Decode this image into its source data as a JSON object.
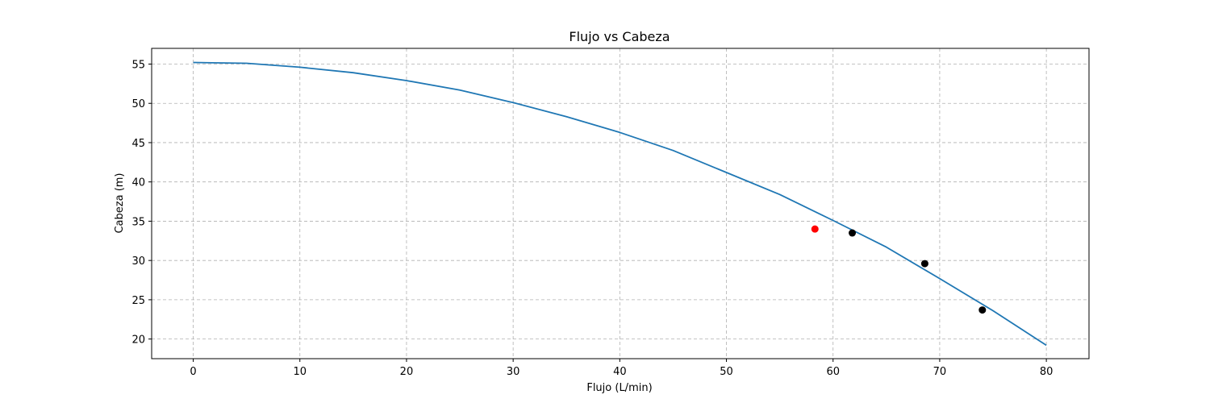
{
  "chart_data": {
    "type": "line",
    "title": "Flujo vs Cabeza",
    "xlabel": "Flujo (L/min)",
    "ylabel": "Cabeza (m)",
    "xlim": [
      -3.9,
      84
    ],
    "ylim": [
      17.5,
      57.0
    ],
    "x_ticks": [
      0,
      10,
      20,
      30,
      40,
      50,
      60,
      70,
      80
    ],
    "y_ticks": [
      20,
      25,
      30,
      35,
      40,
      45,
      50,
      55
    ],
    "grid": true,
    "legend": "none",
    "series": [
      {
        "kind": "line",
        "color": "#1f77b4",
        "x": [
          0,
          5,
          10,
          15,
          20,
          25,
          30,
          35,
          40,
          45,
          50,
          55,
          60,
          65,
          70,
          75,
          80
        ],
        "y": [
          55.2,
          55.1,
          54.6,
          53.9,
          52.9,
          51.7,
          50.1,
          48.3,
          46.3,
          44.0,
          41.2,
          38.4,
          35.1,
          31.7,
          27.7,
          23.6,
          19.2
        ]
      },
      {
        "kind": "scatter",
        "color": "#ff0000",
        "x": [
          58.3
        ],
        "y": [
          34.0
        ]
      },
      {
        "kind": "scatter",
        "color": "#000000",
        "x": [
          61.8,
          68.6,
          74.0
        ],
        "y": [
          33.5,
          29.6,
          23.7
        ]
      }
    ]
  }
}
